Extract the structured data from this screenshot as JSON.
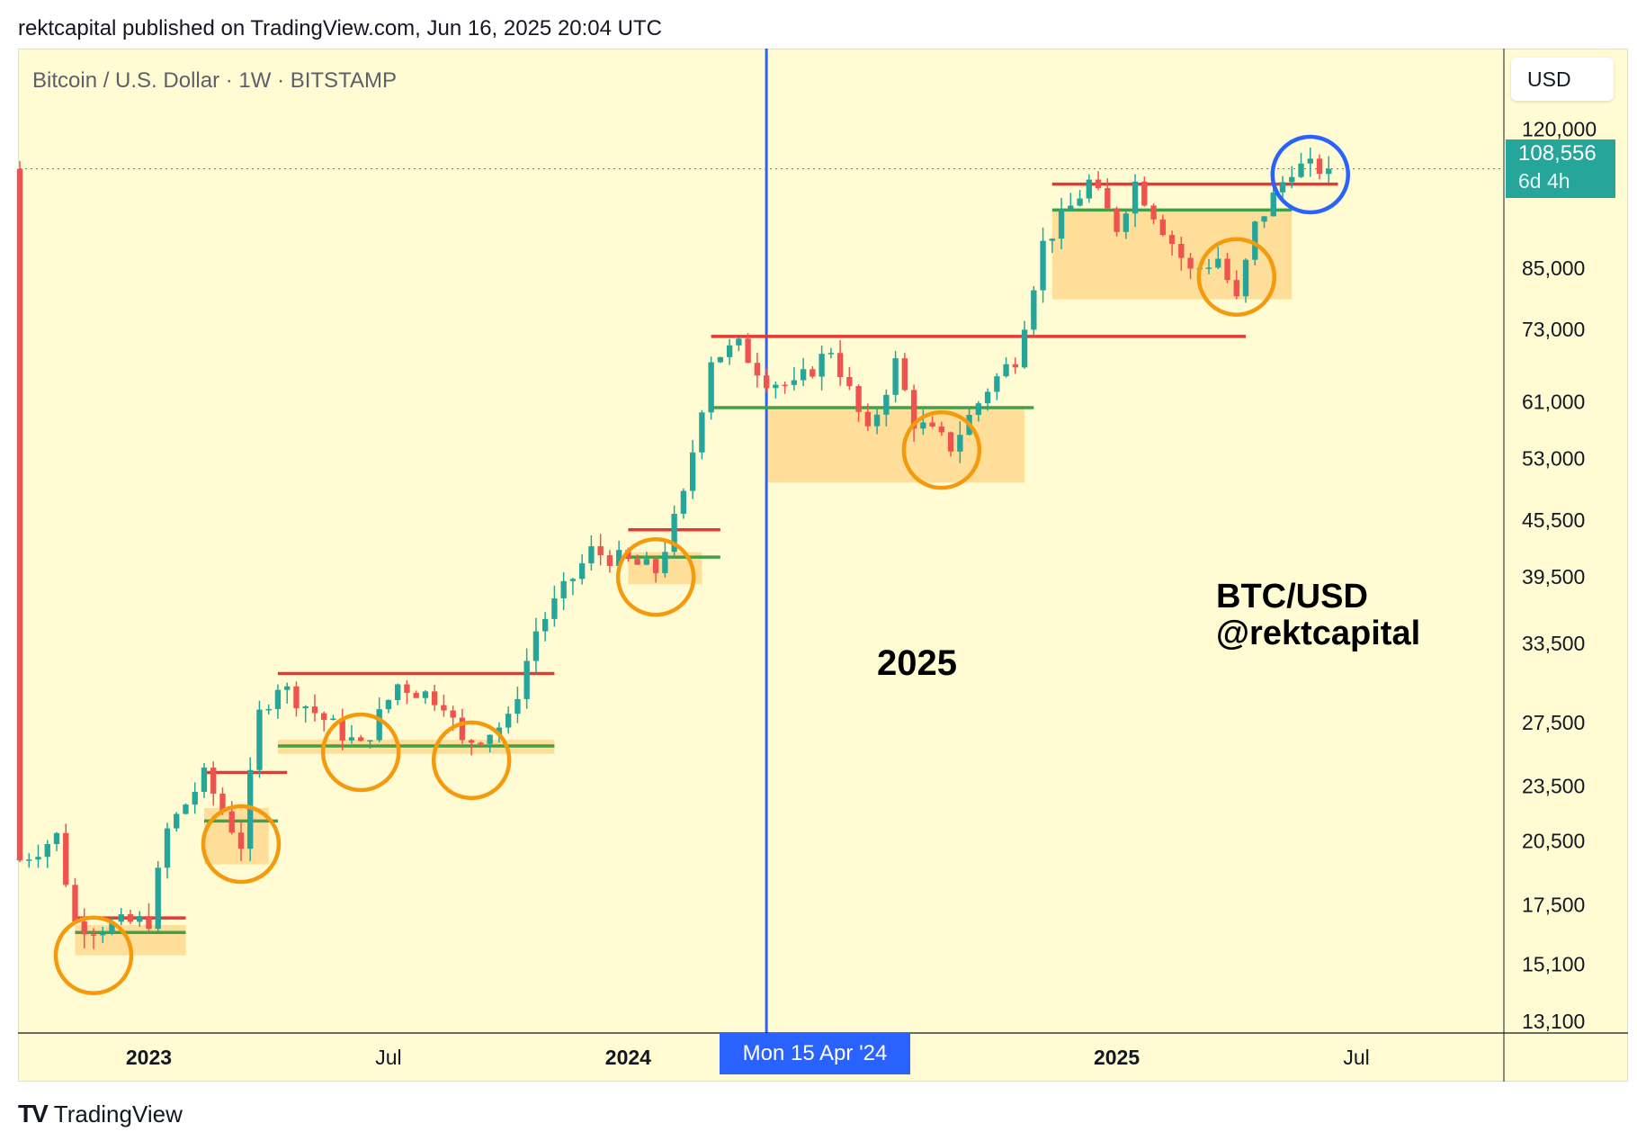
{
  "header": {
    "published": "rektcapital published on TradingView.com, Jun 16, 2025 20:04 UTC"
  },
  "symbol_label": "Bitcoin / U.S. Dollar · 1W · BITSTAMP",
  "currency_button": "USD",
  "last_price": {
    "value": "108,556",
    "countdown": "6d 4h"
  },
  "crosshair_date": "Mon 15 Apr '24",
  "footer": {
    "logo": "TV",
    "brand": "TradingView"
  },
  "annotations": {
    "year_text": "2025",
    "pair_text": "BTC/USD",
    "author_text": "@rektcapital"
  },
  "colors": {
    "background": "#fffcd4",
    "up": "#26a69a",
    "down": "#ef5350",
    "zone": "#ffd88f",
    "resistance": "#e53935",
    "support": "#43a047",
    "highlight": "#f59a0c",
    "current_highlight": "#2962ff",
    "vline": "#2962ff"
  },
  "chart_data": {
    "type": "candlestick",
    "scale": "log",
    "ylim": [
      12700,
      145000
    ],
    "xlim": [
      "2022-09-26",
      "2025-10-27"
    ],
    "y_ticks": [
      "120,000",
      "85,000",
      "73,000",
      "61,000",
      "53,000",
      "45,500",
      "39,500",
      "33,500",
      "27,500",
      "23,500",
      "20,500",
      "17,500",
      "15,100",
      "13,100"
    ],
    "x_ticks": [
      {
        "label": "2023",
        "date": "2023-01-02",
        "bold": true
      },
      {
        "label": "Jul",
        "date": "2023-07-03",
        "bold": false
      },
      {
        "label": "2024",
        "date": "2024-01-01",
        "bold": true
      },
      {
        "label": "Jul",
        "date": "2024-07-01",
        "bold": false
      },
      {
        "label": "2025",
        "date": "2025-01-06",
        "bold": true
      },
      {
        "label": "Jul",
        "date": "2025-07-07",
        "bold": false
      }
    ],
    "current_price": 108556,
    "vertical_line_date": "2024-04-15",
    "waypoints": [
      [
        "2022-09-26",
        19500
      ],
      [
        "2022-10-24",
        20700
      ],
      [
        "2022-11-07",
        16700
      ],
      [
        "2022-11-21",
        16500
      ],
      [
        "2023-01-02",
        16800
      ],
      [
        "2023-01-16",
        21000
      ],
      [
        "2023-02-13",
        24000
      ],
      [
        "2023-03-13",
        20300
      ],
      [
        "2023-03-27",
        28000
      ],
      [
        "2023-04-10",
        30200
      ],
      [
        "2023-06-12",
        25800
      ],
      [
        "2023-07-10",
        30200
      ],
      [
        "2023-08-14",
        29000
      ],
      [
        "2023-08-28",
        26000
      ],
      [
        "2023-10-02",
        27500
      ],
      [
        "2023-10-23",
        34500
      ],
      [
        "2023-12-04",
        42000
      ],
      [
        "2024-01-22",
        40000
      ],
      [
        "2024-02-12",
        48000
      ],
      [
        "2024-03-04",
        68000
      ],
      [
        "2024-03-25",
        69800
      ],
      [
        "2024-04-15",
        64500
      ],
      [
        "2024-05-06",
        63000
      ],
      [
        "2024-06-03",
        69500
      ],
      [
        "2024-07-01",
        56000
      ],
      [
        "2024-07-22",
        67000
      ],
      [
        "2024-08-05",
        58000
      ],
      [
        "2024-09-02",
        54500
      ],
      [
        "2024-09-30",
        63000
      ],
      [
        "2024-10-21",
        68000
      ],
      [
        "2024-11-11",
        90000
      ],
      [
        "2024-12-16",
        105000
      ],
      [
        "2025-01-06",
        94000
      ],
      [
        "2025-01-20",
        105000
      ],
      [
        "2025-03-03",
        84000
      ],
      [
        "2025-03-24",
        87000
      ],
      [
        "2025-04-07",
        78000
      ],
      [
        "2025-04-21",
        94000
      ],
      [
        "2025-05-19",
        109000
      ],
      [
        "2025-06-16",
        108556
      ]
    ],
    "zones": [
      {
        "from": "2022-11-07",
        "to": "2023-01-30",
        "low": 15400,
        "high": 16600
      },
      {
        "from": "2023-02-13",
        "to": "2023-04-03",
        "low": 19300,
        "high": 22200
      },
      {
        "from": "2023-04-10",
        "to": "2023-11-06",
        "low": 25400,
        "high": 26300
      },
      {
        "from": "2024-01-01",
        "to": "2024-02-26",
        "low": 38700,
        "high": 41900
      },
      {
        "from": "2024-04-15",
        "to": "2024-10-28",
        "low": 49800,
        "high": 60000
      },
      {
        "from": "2024-11-18",
        "to": "2025-05-19",
        "low": 78500,
        "high": 98000
      }
    ],
    "resistance_lines": [
      {
        "from": "2022-11-07",
        "to": "2023-01-30",
        "price": 16900
      },
      {
        "from": "2023-02-13",
        "to": "2023-04-17",
        "price": 24250
      },
      {
        "from": "2023-04-10",
        "to": "2023-11-06",
        "price": 31000
      },
      {
        "from": "2024-01-01",
        "to": "2024-03-11",
        "price": 44300
      },
      {
        "from": "2024-03-04",
        "to": "2025-04-14",
        "price": 71600
      },
      {
        "from": "2024-11-18",
        "to": "2025-06-23",
        "price": 104500
      }
    ],
    "support_lines": [
      {
        "from": "2022-11-07",
        "to": "2023-01-30",
        "price": 16300
      },
      {
        "from": "2023-02-13",
        "to": "2023-04-10",
        "price": 21500
      },
      {
        "from": "2023-04-10",
        "to": "2023-11-06",
        "price": 25900
      },
      {
        "from": "2024-01-01",
        "to": "2024-03-11",
        "price": 41400
      },
      {
        "from": "2024-03-04",
        "to": "2024-11-04",
        "price": 60000
      },
      {
        "from": "2024-11-18",
        "to": "2025-05-19",
        "price": 98000
      }
    ],
    "highlight_circles": [
      {
        "date": "2022-11-21",
        "price": 15400,
        "color": "orange"
      },
      {
        "date": "2023-03-13",
        "price": 20300,
        "color": "orange"
      },
      {
        "date": "2023-06-12",
        "price": 25500,
        "color": "orange"
      },
      {
        "date": "2023-09-04",
        "price": 25000,
        "color": "orange"
      },
      {
        "date": "2024-01-22",
        "price": 39400,
        "color": "orange"
      },
      {
        "date": "2024-08-26",
        "price": 54000,
        "color": "orange"
      },
      {
        "date": "2025-04-07",
        "price": 83000,
        "color": "orange"
      },
      {
        "date": "2025-06-02",
        "price": 107000,
        "color": "blue"
      }
    ]
  }
}
